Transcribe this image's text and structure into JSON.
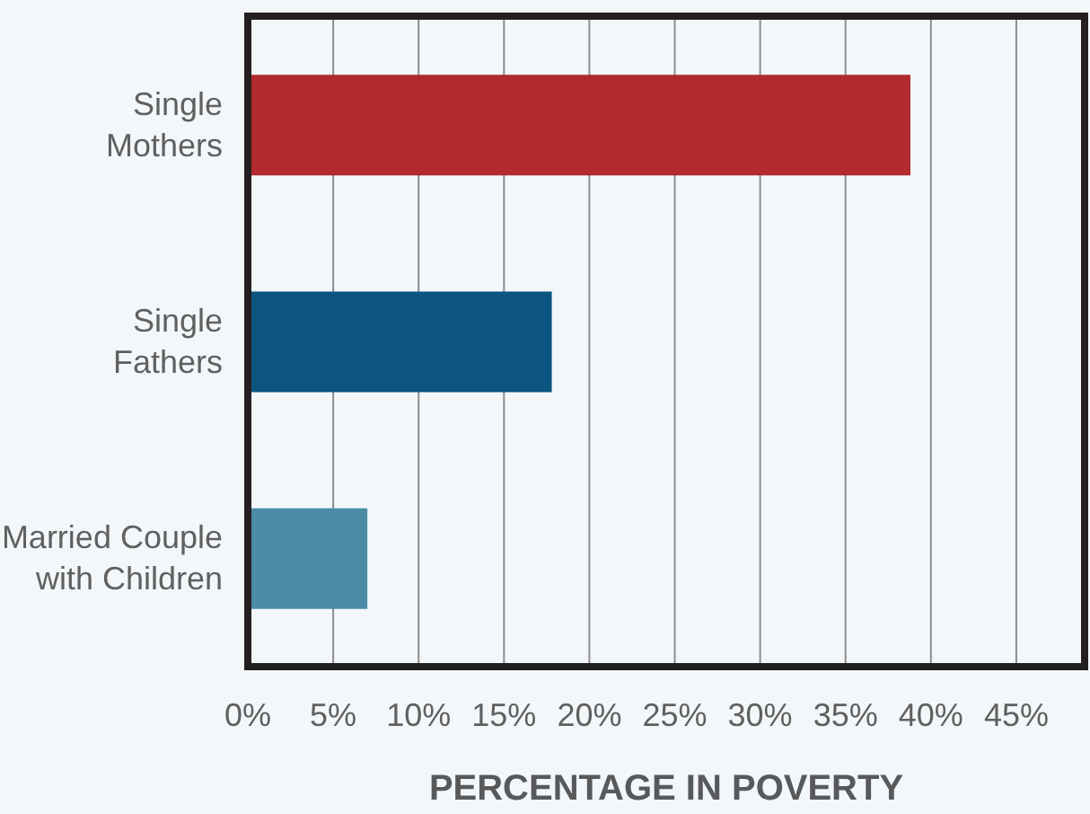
{
  "chart_data": {
    "type": "bar",
    "orientation": "horizontal",
    "categories": [
      "Single Mothers",
      "Single Fathers",
      "Married Couple with Children"
    ],
    "values": [
      38.8,
      17.8,
      7.0
    ],
    "colors": [
      "#b02a2e",
      "#0d5581",
      "#4a8ca6"
    ],
    "xlabel": "PERCENTAGE IN POVERTY",
    "xlim": [
      0,
      49
    ],
    "xticks": [
      {
        "value": 0,
        "label": "0%"
      },
      {
        "value": 5,
        "label": "5%"
      },
      {
        "value": 10,
        "label": "10%"
      },
      {
        "value": 15,
        "label": "15%"
      },
      {
        "value": 20,
        "label": "20%"
      },
      {
        "value": 25,
        "label": "25%"
      },
      {
        "value": 30,
        "label": "30%"
      },
      {
        "value": 35,
        "label": "35%"
      },
      {
        "value": 40,
        "label": "40%"
      },
      {
        "value": 45,
        "label": "45%"
      }
    ],
    "grid": "x"
  }
}
